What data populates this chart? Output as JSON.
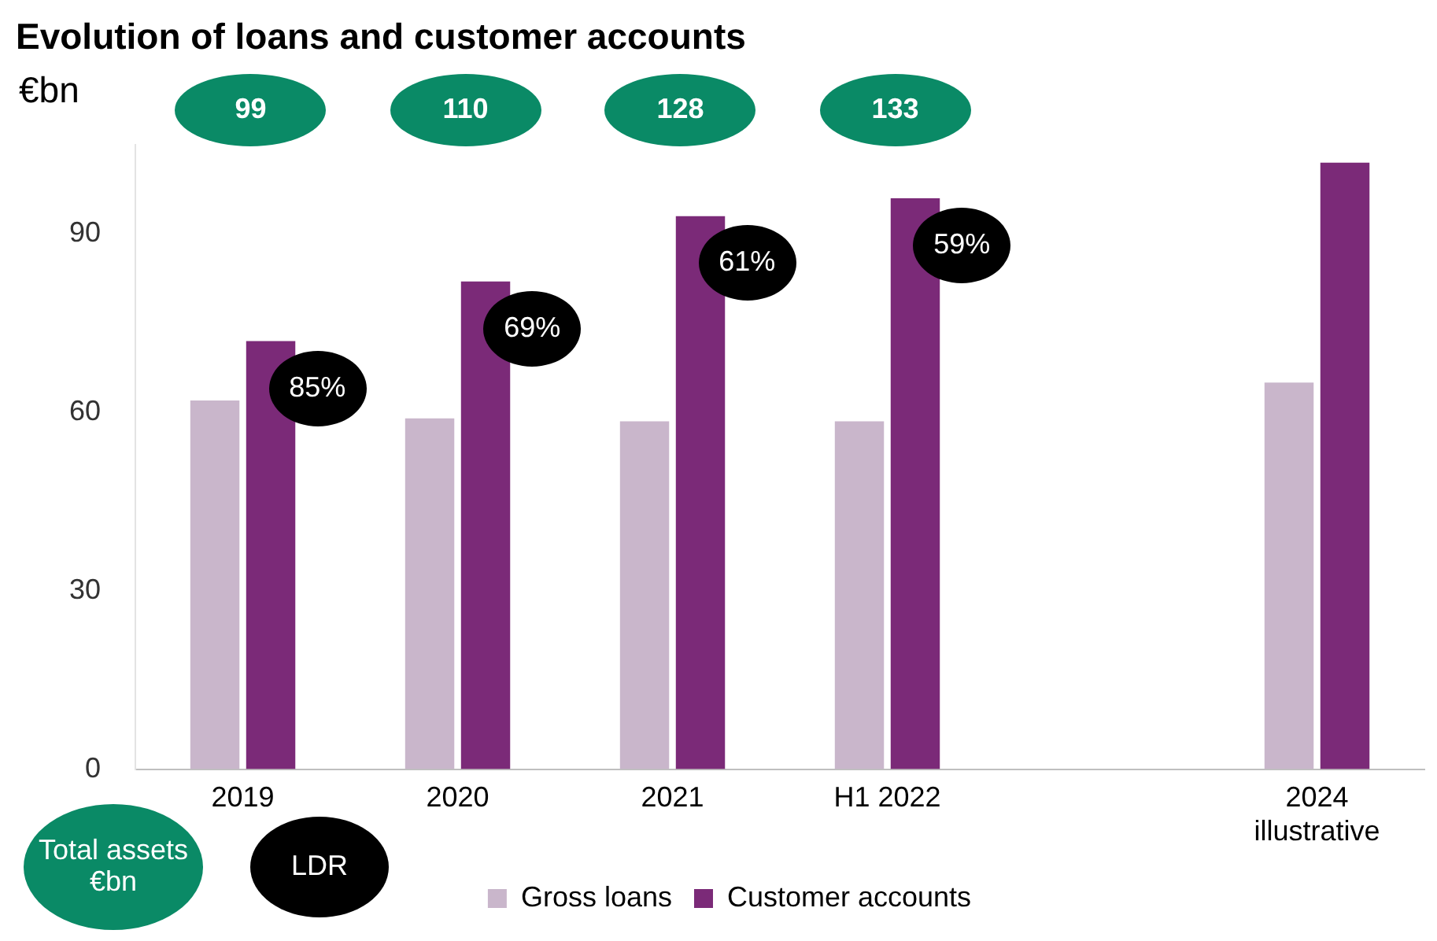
{
  "chart_data": {
    "type": "bar",
    "title": "Evolution of loans and customer accounts",
    "ylabel": "€bn",
    "categories": [
      "2019",
      "2020",
      "2021",
      "H1 2022",
      null,
      "2024 illustrative"
    ],
    "series": [
      {
        "name": "Gross loans",
        "color": "#c9b6cb",
        "values": [
          62,
          59,
          58.5,
          58.5,
          null,
          65
        ]
      },
      {
        "name": "Customer accounts",
        "color": "#7b2a78",
        "values": [
          72,
          82,
          93,
          96,
          null,
          102
        ]
      }
    ],
    "ylim": [
      0,
      105
    ],
    "yticks": [
      0,
      30,
      60,
      90
    ],
    "grid": false,
    "legend": "bottom",
    "annotations": [
      "99",
      "110",
      "128",
      "133",
      {
        "text": "85%",
        "x": "2019",
        "y": 72
      },
      {
        "text": "69%",
        "x": "2020",
        "y": 82
      },
      {
        "text": "61%",
        "x": "2021",
        "y": 93
      },
      {
        "text": "59%",
        "x": "H1 2022",
        "y": 96
      },
      "Total assets €bn",
      "LDR"
    ]
  }
}
